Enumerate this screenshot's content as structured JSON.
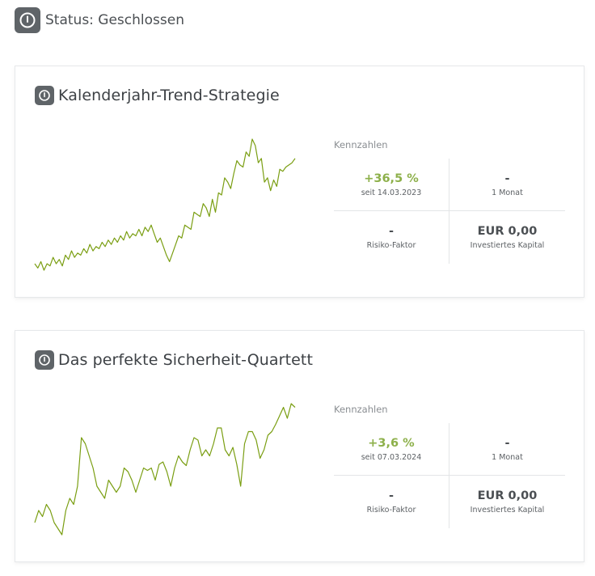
{
  "status": {
    "label": "Status: Geschlossen",
    "icon": "power-icon"
  },
  "colors": {
    "chart_line": "#7a9e12",
    "positive": "#8db04a",
    "badge": "#5f6468"
  },
  "strategies": [
    {
      "title": "Kalenderjahr-Trend-Strategie",
      "icon": "power-icon",
      "kpi": {
        "heading": "Kennzahlen",
        "performance": {
          "value": "+36,5 %",
          "label": "seit 14.03.2023"
        },
        "month": {
          "value": "-",
          "label": "1 Monat"
        },
        "risk": {
          "value": "-",
          "label": "Risiko-Faktor"
        },
        "capital": {
          "value": "EUR 0,00",
          "label": "Investiertes Kapital"
        }
      },
      "chart_data": {
        "type": "line",
        "series": [
          {
            "values": [
              100,
              98,
              101,
              97,
              100,
              99,
              103,
              100,
              102,
              99,
              104,
              102,
              106,
              103,
              105,
              104,
              107,
              105,
              109,
              106,
              108,
              107,
              110,
              108,
              111,
              109,
              112,
              110,
              113,
              111,
              115,
              112,
              114,
              113,
              116,
              113,
              117,
              115,
              118,
              114,
              110,
              112,
              108,
              104,
              101,
              105,
              109,
              113,
              112,
              118,
              117,
              116,
              124,
              123,
              122,
              128,
              126,
              122,
              130,
              124,
              133,
              132,
              140,
              138,
              135,
              142,
              148,
              146,
              145,
              152,
              150,
              158,
              155,
              147,
              149,
              138,
              140,
              134,
              139,
              136,
              144,
              143,
              145,
              146,
              147,
              149
            ]
          }
        ]
      }
    },
    {
      "title": "Das perfekte Sicherheit-Quartett",
      "icon": "power-icon",
      "kpi": {
        "heading": "Kennzahlen",
        "performance": {
          "value": "+3,6 %",
          "label": "seit 07.03.2024"
        },
        "month": {
          "value": "-",
          "label": "1 Monat"
        },
        "risk": {
          "value": "-",
          "label": "Risiko-Faktor"
        },
        "capital": {
          "value": "EUR 0,00",
          "label": "Investiertes Kapital"
        }
      },
      "chart_data": {
        "type": "line",
        "series": [
          {
            "values": [
              100,
              101,
              100.5,
              101.5,
              101,
              100,
              99.5,
              99,
              101,
              102,
              101.5,
              103,
              107,
              106.5,
              105.5,
              104.5,
              103,
              102.5,
              102,
              103.5,
              103,
              102.5,
              103,
              104.5,
              104.2,
              103.5,
              102.5,
              103.5,
              104.5,
              104.3,
              104.5,
              103.5,
              104.8,
              105,
              104.2,
              103,
              104.5,
              105.5,
              105,
              104.7,
              106,
              107,
              106.8,
              105.5,
              106,
              105.5,
              106.5,
              107.8,
              107.8,
              106,
              105.5,
              106.2,
              104.8,
              103,
              106.5,
              107.5,
              107.5,
              106.8,
              105.3,
              106,
              107.2,
              107.5,
              108.1,
              108.8,
              109.5,
              108.6,
              109.8,
              109.5
            ]
          }
        ]
      }
    }
  ]
}
